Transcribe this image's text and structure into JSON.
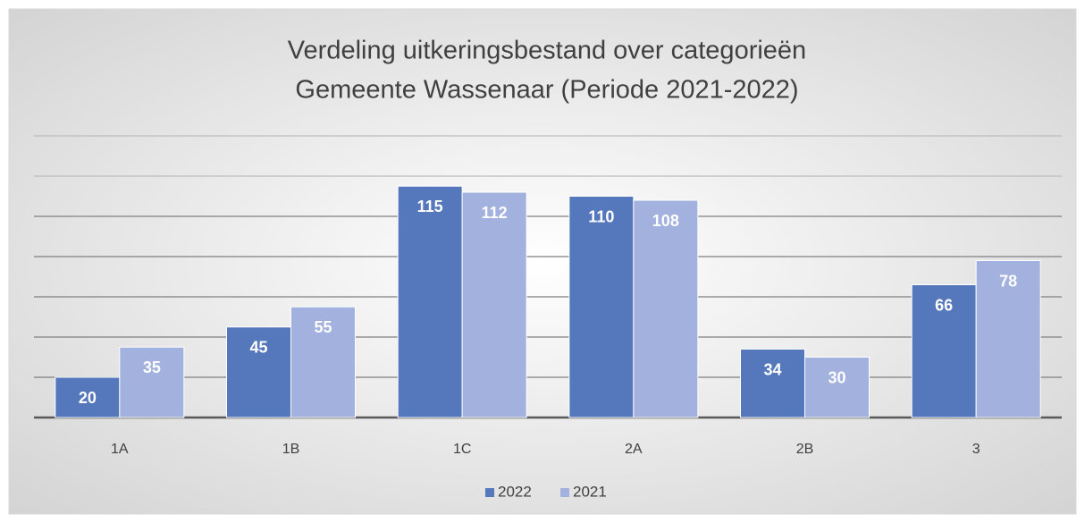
{
  "chart_data": {
    "type": "bar",
    "title": "Verdeling uitkeringsbestand over categorieën",
    "subtitle": "Gemeente Wassenaar (Periode 2021-2022)",
    "categories": [
      "1A",
      "1B",
      "1C",
      "2A",
      "2B",
      "3"
    ],
    "series": [
      {
        "name": "2022",
        "color": "#5578bc",
        "values": [
          20,
          45,
          115,
          110,
          34,
          66
        ]
      },
      {
        "name": "2021",
        "color": "#a2b1dd",
        "values": [
          35,
          55,
          112,
          108,
          30,
          78
        ]
      }
    ],
    "ylim": [
      0,
      140
    ],
    "yticks": [
      0,
      20,
      40,
      60,
      80,
      100,
      120,
      140
    ],
    "grid": true,
    "legend": "bottom"
  }
}
